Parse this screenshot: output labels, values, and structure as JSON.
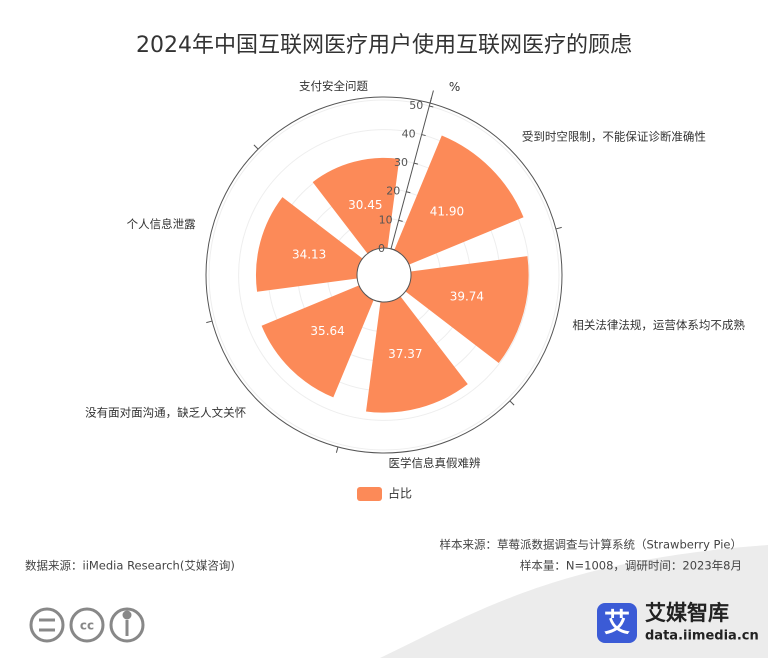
{
  "chart_data": {
    "type": "polar_bar",
    "title": "2024年中国互联网医疗用户使用互联网医疗的顾虑",
    "categories": [
      "支付安全问题",
      "受到时空限制，不能保证诊断准确性",
      "相关法律法规，运营体系均不成熟",
      "医学信息真假难辨",
      "没有面对面沟通，缺乏人文关怀",
      "个人信息泄露"
    ],
    "series": [
      {
        "name": "占比",
        "color": "#fc8a58",
        "values": [
          30.45,
          41.9,
          39.74,
          37.37,
          35.64,
          34.13
        ],
        "value_labels": [
          "30.45",
          "41.90",
          "39.74",
          "37.37",
          "35.64",
          "34.13"
        ]
      }
    ],
    "rlim": [
      0,
      50
    ],
    "rticks": [
      0,
      10,
      20,
      30,
      40,
      50
    ],
    "r_axis_label": "%",
    "grid": true
  },
  "footer": {
    "sample_source": "样本来源：草莓派数据调查与计算系统（Strawberry Pie）",
    "data_source": "数据来源：iiMedia Research(艾媒咨询)",
    "sample_info": "样本量：N=1008，调研时间：2023年8月",
    "brand_icon": "艾",
    "brand_name": "艾媒智库",
    "brand_url": "data.iimedia.cn"
  }
}
